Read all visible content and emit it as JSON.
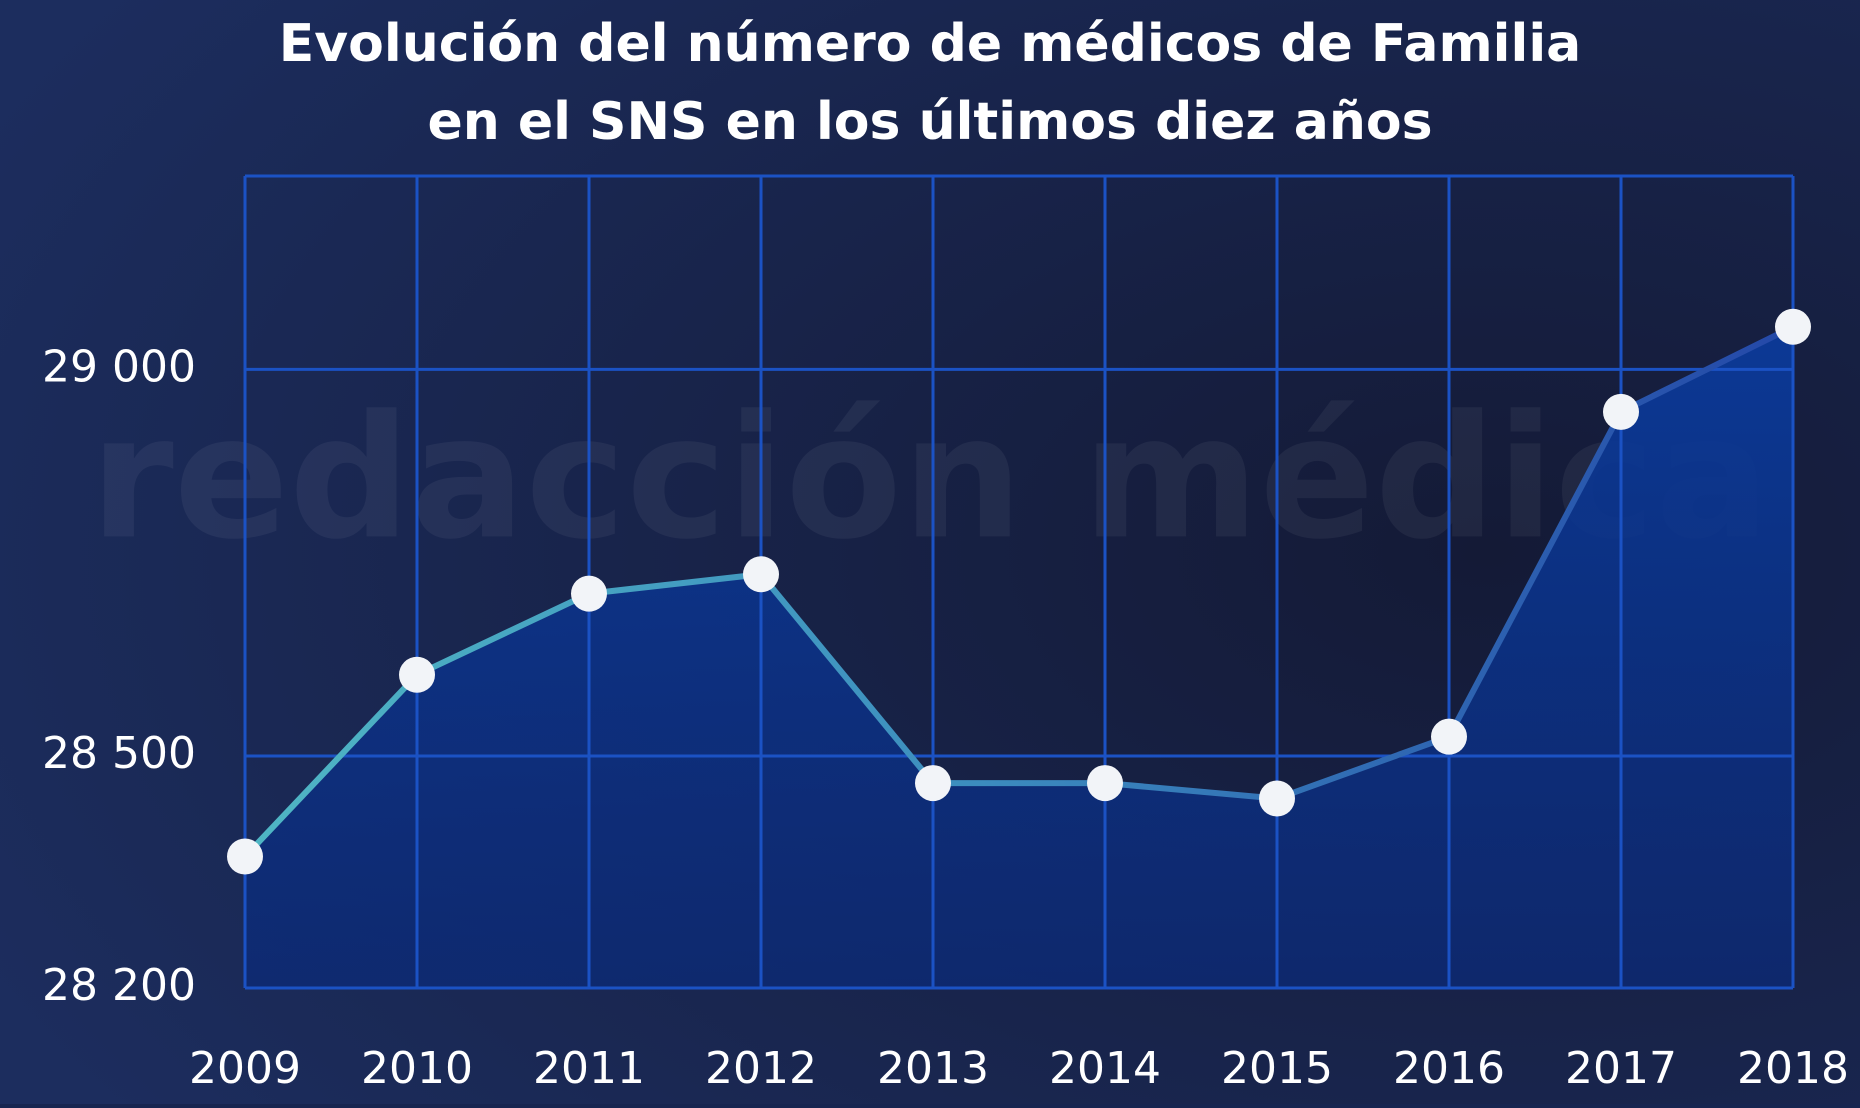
{
  "chart_data": {
    "type": "line",
    "title": [
      "Evolución del número de médicos de Familia",
      "en el SNS en los últimos diez años"
    ],
    "watermark": "redacción médica",
    "categories": [
      "2009",
      "2010",
      "2011",
      "2012",
      "2013",
      "2014",
      "2015",
      "2016",
      "2017",
      "2018"
    ],
    "series": [
      {
        "color": "#4fb6c4",
        "values": [
          28370,
          28605,
          28710,
          28735,
          28465,
          28465,
          28445,
          28525,
          28945,
          29055
        ]
      }
    ],
    "ylim": [
      28200,
      29250
    ],
    "yticks": [
      {
        "value": 28200,
        "label": "28 200"
      },
      {
        "value": 28500,
        "label": "28 500"
      },
      {
        "value": 29000,
        "label": "29 000"
      }
    ],
    "grid": true
  }
}
